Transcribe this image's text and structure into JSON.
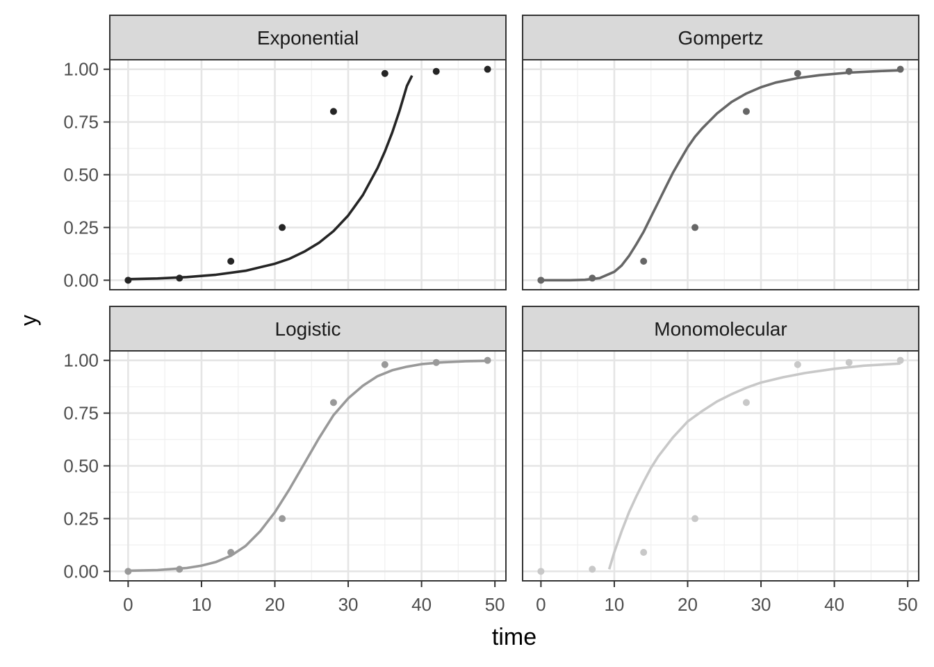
{
  "chart_data": {
    "type": "scatter",
    "xlabel": "time",
    "ylabel": "y",
    "xlim": [
      -2.5,
      51.5
    ],
    "ylim": [
      -0.045,
      1.045
    ],
    "x_ticks": [
      0,
      10,
      20,
      30,
      40,
      50
    ],
    "x_tick_labels": [
      "0",
      "10",
      "20",
      "30",
      "40",
      "50"
    ],
    "y_ticks": [
      0,
      0.25,
      0.5,
      0.75,
      1.0
    ],
    "y_tick_labels": [
      "0.00",
      "0.25",
      "0.50",
      "0.75",
      "1.00"
    ],
    "grid": true,
    "panels": [
      {
        "title": "Exponential",
        "color": "#252525",
        "points": {
          "x": [
            0,
            7,
            14,
            21,
            28,
            35,
            42,
            49
          ],
          "y": [
            0.0,
            0.01,
            0.09,
            0.25,
            0.8,
            0.98,
            0.99,
            1.0
          ]
        },
        "curve": {
          "x": [
            0,
            4,
            8,
            12,
            16,
            20,
            22,
            24,
            26,
            28,
            30,
            32,
            34,
            35,
            36,
            37,
            38,
            38.7
          ],
          "y": [
            0.005,
            0.0085,
            0.015,
            0.026,
            0.045,
            0.078,
            0.102,
            0.135,
            0.177,
            0.233,
            0.307,
            0.404,
            0.532,
            0.61,
            0.7,
            0.803,
            0.921,
            0.97
          ]
        }
      },
      {
        "title": "Gompertz",
        "color": "#666666",
        "points": {
          "x": [
            0,
            7,
            14,
            21,
            28,
            35,
            42,
            49
          ],
          "y": [
            0.0,
            0.01,
            0.09,
            0.25,
            0.8,
            0.98,
            0.99,
            1.0
          ]
        },
        "curve": {
          "x": [
            0,
            4,
            6,
            8,
            10,
            11,
            12,
            13,
            14,
            15,
            16,
            17,
            18,
            19,
            20,
            21,
            22,
            24,
            26,
            28,
            30,
            32,
            35,
            38,
            42,
            46,
            49
          ],
          "y": [
            0.0,
            0.0,
            0.002,
            0.01,
            0.04,
            0.07,
            0.115,
            0.17,
            0.23,
            0.3,
            0.37,
            0.44,
            0.51,
            0.57,
            0.63,
            0.68,
            0.72,
            0.79,
            0.845,
            0.885,
            0.915,
            0.937,
            0.958,
            0.972,
            0.984,
            0.991,
            0.995
          ]
        }
      },
      {
        "title": "Logistic",
        "color": "#999999",
        "points": {
          "x": [
            0,
            7,
            14,
            21,
            28,
            35,
            42,
            49
          ],
          "y": [
            0.0,
            0.01,
            0.09,
            0.25,
            0.8,
            0.98,
            0.99,
            1.0
          ]
        },
        "curve": {
          "x": [
            0,
            4,
            8,
            10,
            12,
            14,
            16,
            18,
            20,
            22,
            24,
            26,
            28,
            30,
            32,
            34,
            36,
            38,
            40,
            43,
            46,
            49
          ],
          "y": [
            0.003,
            0.006,
            0.016,
            0.027,
            0.045,
            0.074,
            0.12,
            0.19,
            0.28,
            0.39,
            0.51,
            0.63,
            0.74,
            0.82,
            0.88,
            0.925,
            0.953,
            0.97,
            0.982,
            0.991,
            0.996,
            0.998
          ]
        }
      },
      {
        "title": "Monomolecular",
        "color": "#c8c8c8",
        "points": {
          "x": [
            0,
            7,
            14,
            21,
            28,
            35,
            42,
            49
          ],
          "y": [
            0.0,
            0.01,
            0.09,
            0.25,
            0.8,
            0.98,
            0.99,
            1.0
          ]
        },
        "curve": {
          "x": [
            9.3,
            10,
            11,
            12,
            13,
            14,
            15,
            16,
            18,
            20,
            22,
            24,
            26,
            28,
            30,
            33,
            36,
            40,
            44,
            49
          ],
          "y": [
            0.01,
            0.09,
            0.19,
            0.28,
            0.355,
            0.425,
            0.49,
            0.545,
            0.635,
            0.71,
            0.76,
            0.805,
            0.84,
            0.87,
            0.895,
            0.92,
            0.94,
            0.96,
            0.975,
            0.985
          ]
        }
      }
    ]
  }
}
